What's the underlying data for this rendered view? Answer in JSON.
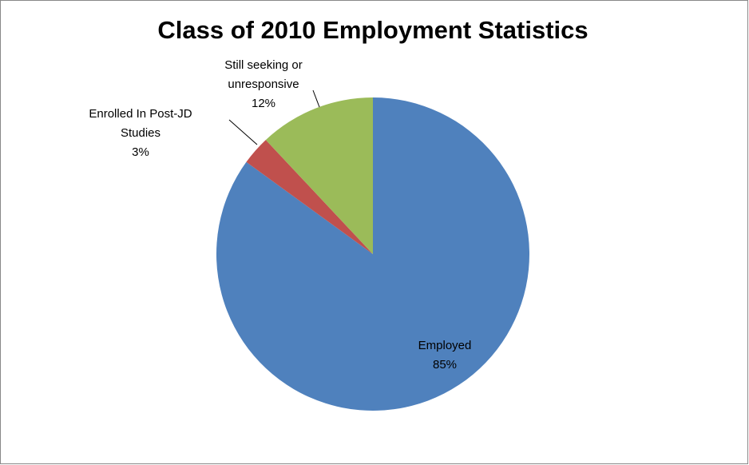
{
  "chart_data": {
    "type": "pie",
    "title": "Class of 2010 Employment Statistics",
    "categories": [
      "Employed",
      "Enrolled In Post-JD Studies",
      "Still seeking or unresponsive"
    ],
    "values": [
      85,
      3,
      12
    ],
    "value_labels": [
      "85%",
      "3%",
      "12%"
    ],
    "colors": [
      "#4f81bd",
      "#c0504d",
      "#9bbb59"
    ]
  }
}
